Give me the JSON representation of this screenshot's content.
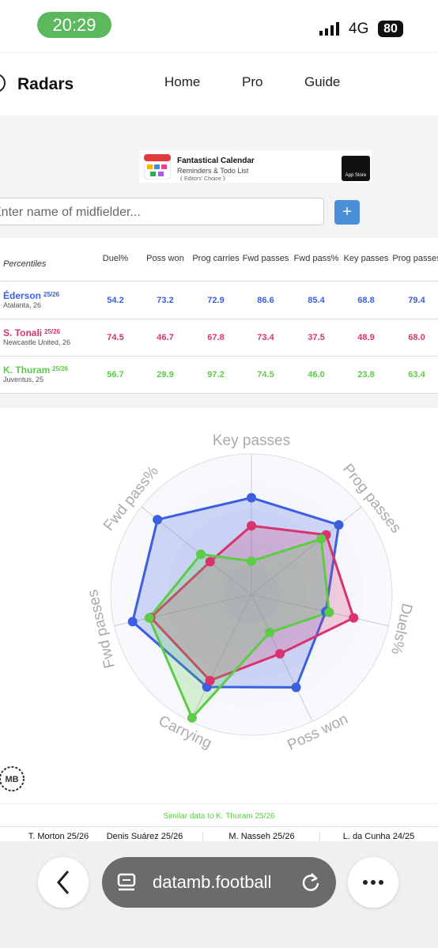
{
  "status_bar": {
    "time": "20:29",
    "network": "4G",
    "battery": "80"
  },
  "nav": {
    "brand": "Radars",
    "links": [
      "Home",
      "Pro",
      "Guide"
    ]
  },
  "ad": {
    "title": "Fantastical Calendar",
    "subtitle": "Reminders & Todo List",
    "badge": "《 Editors' Choice 》",
    "store": "App Store"
  },
  "search": {
    "placeholder": "Enter name of midfielder...",
    "button": "+"
  },
  "table": {
    "header": [
      "Percentiles",
      "Duel%",
      "Poss won",
      "Prog carries",
      "Fwd passes",
      "Fwd pass%",
      "Key passes",
      "Prog passes"
    ],
    "rows": [
      {
        "name": "Éderson",
        "season": "25/26",
        "team": "Atalanta, 26",
        "values": [
          "54.2",
          "73.2",
          "72.9",
          "86.6",
          "85.4",
          "68.8",
          "79.4"
        ]
      },
      {
        "name": "S. Tonali",
        "season": "25/26",
        "team": "Newcastle United, 26",
        "values": [
          "74.5",
          "46.7",
          "67.8",
          "73.4",
          "37.5",
          "48.9",
          "68.0"
        ]
      },
      {
        "name": "K. Thuram",
        "season": "25/26",
        "team": "Juventus, 25",
        "values": [
          "56.7",
          "29.9",
          "97.2",
          "74.5",
          "46.0",
          "23.8",
          "63.4"
        ]
      }
    ]
  },
  "chart_data": {
    "type": "radar",
    "categories": [
      "Key passes",
      "Prog passes",
      "Duels%",
      "Poss won",
      "Carrying",
      "Fwd passes",
      "Fwd pass%"
    ],
    "rlim": [
      0,
      100
    ],
    "rticks": [
      20,
      40,
      60,
      80,
      100
    ],
    "series": [
      {
        "name": "Éderson",
        "color": "#3b5fe0",
        "values": [
          68.8,
          79.4,
          54.2,
          73.2,
          72.9,
          86.6,
          85.4
        ]
      },
      {
        "name": "S. Tonali",
        "color": "#d9336e",
        "values": [
          48.9,
          68.0,
          74.5,
          46.7,
          67.8,
          73.4,
          37.5
        ]
      },
      {
        "name": "K. Thuram",
        "color": "#5ccc46",
        "values": [
          23.8,
          63.4,
          56.7,
          29.9,
          97.2,
          74.5,
          46.0
        ]
      }
    ]
  },
  "similar": {
    "title": "Similar data to K. Thuram 25/26",
    "players": [
      "T. Morton 25/26",
      "Denis Suárez 25/26",
      "M. Nasseh 25/26",
      "L. da Cunha 24/25"
    ]
  },
  "browser": {
    "url": "datamb.football"
  }
}
